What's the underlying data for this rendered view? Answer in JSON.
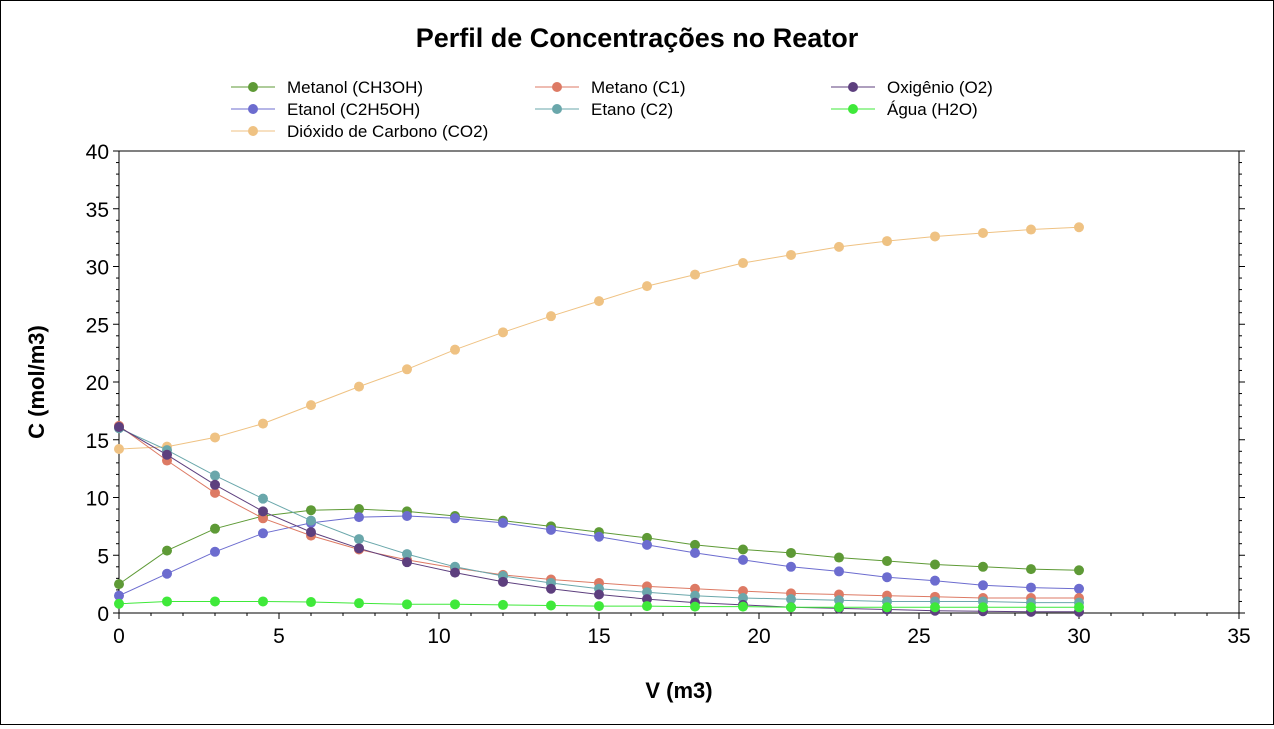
{
  "chart_data": {
    "type": "line",
    "title": "Perfil de Concentrações no Reator",
    "xlabel": "V (m3)",
    "ylabel": "C (mol/m3)",
    "xlim": [
      0,
      35
    ],
    "ylim": [
      0,
      40
    ],
    "x_ticks": [
      0,
      5,
      10,
      15,
      20,
      25,
      30,
      35
    ],
    "y_ticks": [
      0,
      5,
      10,
      15,
      20,
      25,
      30,
      35,
      40
    ],
    "grid": false,
    "legend_position": "top",
    "x": [
      0,
      1.5,
      3,
      4.5,
      6,
      7.5,
      9,
      10.5,
      12,
      13.5,
      15,
      16.5,
      18,
      19.5,
      21,
      22.5,
      24,
      25.5,
      27,
      28.5,
      30
    ],
    "series": [
      {
        "name": "Metanol (CH3OH)",
        "color": "#5e9a36",
        "values": [
          2.5,
          5.4,
          7.3,
          8.4,
          8.9,
          9.0,
          8.8,
          8.4,
          8.0,
          7.5,
          7.0,
          6.5,
          5.9,
          5.5,
          5.2,
          4.8,
          4.5,
          4.2,
          4.0,
          3.8,
          3.7
        ]
      },
      {
        "name": "Etanol (C2H5OH)",
        "color": "#6c6ccf",
        "values": [
          1.5,
          3.4,
          5.3,
          6.9,
          7.8,
          8.3,
          8.4,
          8.2,
          7.8,
          7.2,
          6.6,
          5.9,
          5.2,
          4.6,
          4.0,
          3.6,
          3.1,
          2.8,
          2.4,
          2.2,
          2.1
        ]
      },
      {
        "name": "Dióxido de Carbono (CO2)",
        "color": "#efc283",
        "values": [
          14.2,
          14.4,
          15.2,
          16.4,
          18.0,
          19.6,
          21.1,
          22.8,
          24.3,
          25.7,
          27.0,
          28.3,
          29.3,
          30.3,
          31.0,
          31.7,
          32.2,
          32.6,
          32.9,
          33.2,
          33.4
        ]
      },
      {
        "name": "Metano (C1)",
        "color": "#dd7a64",
        "values": [
          16.2,
          13.2,
          10.4,
          8.2,
          6.7,
          5.5,
          4.6,
          3.9,
          3.3,
          2.9,
          2.6,
          2.3,
          2.1,
          1.9,
          1.7,
          1.6,
          1.5,
          1.4,
          1.3,
          1.3,
          1.3
        ]
      },
      {
        "name": "Etano (C2)",
        "color": "#6aa7ab",
        "values": [
          16.0,
          14.1,
          11.9,
          9.9,
          8.0,
          6.4,
          5.1,
          4.0,
          3.2,
          2.6,
          2.1,
          1.8,
          1.5,
          1.3,
          1.2,
          1.1,
          1.0,
          1.0,
          1.0,
          0.9,
          0.9
        ]
      },
      {
        "name": "Oxigênio (O2)",
        "color": "#5d3f7e",
        "values": [
          16.1,
          13.7,
          11.1,
          8.8,
          7.0,
          5.6,
          4.4,
          3.5,
          2.7,
          2.1,
          1.6,
          1.2,
          0.9,
          0.7,
          0.5,
          0.4,
          0.3,
          0.2,
          0.15,
          0.1,
          0.1
        ]
      },
      {
        "name": "Água (H2O)",
        "color": "#3fe93a",
        "values": [
          0.8,
          1.0,
          1.0,
          1.0,
          0.95,
          0.85,
          0.75,
          0.75,
          0.7,
          0.65,
          0.6,
          0.6,
          0.55,
          0.55,
          0.5,
          0.5,
          0.5,
          0.5,
          0.5,
          0.5,
          0.5
        ]
      }
    ]
  }
}
